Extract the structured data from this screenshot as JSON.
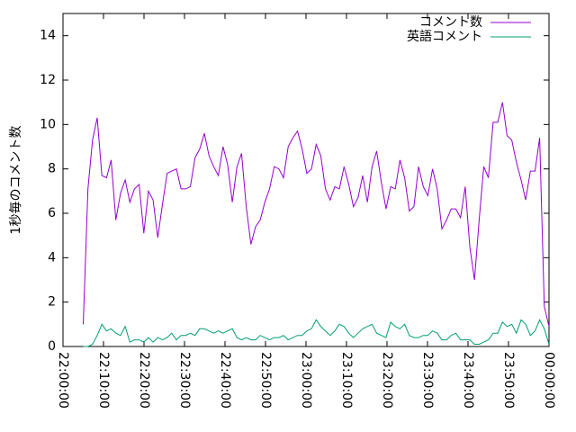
{
  "chart_data": {
    "type": "line",
    "ylabel": "1秒毎のコメント数",
    "x": [
      300,
      369,
      438,
      507,
      576,
      645,
      714,
      783,
      852,
      921,
      990,
      1059,
      1128,
      1197,
      1266,
      1335,
      1404,
      1473,
      1542,
      1611,
      1680,
      1749,
      1818,
      1887,
      1956,
      2025,
      2094,
      2163,
      2232,
      2301,
      2370,
      2439,
      2508,
      2577,
      2646,
      2715,
      2784,
      2853,
      2922,
      2991,
      3060,
      3129,
      3198,
      3267,
      3336,
      3405,
      3474,
      3543,
      3612,
      3681,
      3750,
      3819,
      3888,
      3957,
      4026,
      4095,
      4164,
      4233,
      4302,
      4371,
      4440,
      4509,
      4578,
      4647,
      4716,
      4785,
      4854,
      4923,
      4992,
      5061,
      5130,
      5199,
      5268,
      5337,
      5406,
      5475,
      5544,
      5613,
      5682,
      5751,
      5820,
      5889,
      5958,
      6027,
      6096,
      6165,
      6234,
      6303,
      6372,
      6441,
      6510,
      6579,
      6648,
      6717,
      6786,
      6855,
      6924,
      6993,
      7062,
      7131,
      7200
    ],
    "series": [
      {
        "name": "コメント数",
        "color": "#9400d3",
        "values": [
          1.0,
          7.1,
          9.3,
          10.3,
          7.7,
          7.6,
          8.4,
          5.7,
          6.9,
          7.5,
          6.5,
          7.1,
          7.3,
          5.1,
          7.0,
          6.6,
          4.9,
          6.4,
          7.8,
          7.9,
          8.0,
          7.1,
          7.1,
          7.2,
          8.5,
          8.9,
          9.6,
          8.6,
          8.1,
          7.7,
          9.0,
          8.2,
          6.5,
          8.1,
          8.7,
          6.3,
          4.6,
          5.4,
          5.7,
          6.5,
          7.1,
          8.1,
          8.0,
          7.6,
          9.0,
          9.4,
          9.7,
          8.9,
          7.8,
          8.0,
          9.1,
          8.6,
          7.1,
          6.6,
          7.2,
          7.1,
          8.1,
          7.3,
          6.3,
          6.7,
          7.7,
          6.5,
          8.1,
          8.8,
          7.4,
          6.2,
          7.2,
          7.1,
          8.4,
          7.6,
          6.1,
          6.3,
          8.1,
          7.2,
          6.8,
          8.0,
          7.1,
          5.3,
          5.7,
          6.2,
          6.2,
          5.8,
          7.2,
          4.5,
          3.0,
          5.7,
          8.1,
          7.6,
          10.1,
          10.1,
          11.0,
          9.5,
          9.3,
          8.3,
          7.5,
          6.6,
          7.9,
          7.9,
          9.4,
          1.8,
          0.9
        ]
      },
      {
        "name": "英語コメント",
        "color": "#009e73",
        "values": [
          0,
          0,
          0.1,
          0.5,
          1.0,
          0.7,
          0.8,
          0.6,
          0.5,
          0.9,
          0.2,
          0.3,
          0.3,
          0.2,
          0.4,
          0.2,
          0.4,
          0.3,
          0.4,
          0.6,
          0.3,
          0.5,
          0.5,
          0.6,
          0.5,
          0.8,
          0.8,
          0.7,
          0.6,
          0.7,
          0.6,
          0.7,
          0.8,
          0.4,
          0.3,
          0.4,
          0.3,
          0.3,
          0.5,
          0.4,
          0.3,
          0.4,
          0.4,
          0.5,
          0.3,
          0.4,
          0.5,
          0.5,
          0.7,
          0.8,
          1.2,
          0.9,
          0.7,
          0.5,
          0.7,
          1.0,
          0.9,
          0.6,
          0.4,
          0.6,
          0.8,
          0.9,
          1.0,
          0.6,
          0.5,
          0.4,
          1.1,
          0.9,
          0.8,
          1.0,
          0.5,
          0.4,
          0.4,
          0.5,
          0.5,
          0.7,
          0.6,
          0.3,
          0.3,
          0.5,
          0.6,
          0.3,
          0.3,
          0.3,
          0.1,
          0.1,
          0.2,
          0.3,
          0.6,
          0.6,
          1.1,
          0.9,
          1.0,
          0.6,
          1.2,
          1.0,
          0.5,
          0.7,
          1.2,
          0.8,
          0.1
        ]
      }
    ],
    "xlim": [
      0,
      7200
    ],
    "xticks": [
      {
        "value": 0,
        "label": "22:00:00"
      },
      {
        "value": 600,
        "label": "22:10:00"
      },
      {
        "value": 1200,
        "label": "22:20:00"
      },
      {
        "value": 1800,
        "label": "22:30:00"
      },
      {
        "value": 2400,
        "label": "22:40:00"
      },
      {
        "value": 3000,
        "label": "22:50:00"
      },
      {
        "value": 3600,
        "label": "23:00:00"
      },
      {
        "value": 4200,
        "label": "23:10:00"
      },
      {
        "value": 4800,
        "label": "23:20:00"
      },
      {
        "value": 5400,
        "label": "23:30:00"
      },
      {
        "value": 6000,
        "label": "23:40:00"
      },
      {
        "value": 6600,
        "label": "23:50:00"
      },
      {
        "value": 7200,
        "label": "00:00:00"
      }
    ],
    "ylim": [
      0,
      15
    ],
    "yticks": [
      0,
      2,
      4,
      6,
      8,
      10,
      12,
      14
    ],
    "legend": "top-right"
  }
}
